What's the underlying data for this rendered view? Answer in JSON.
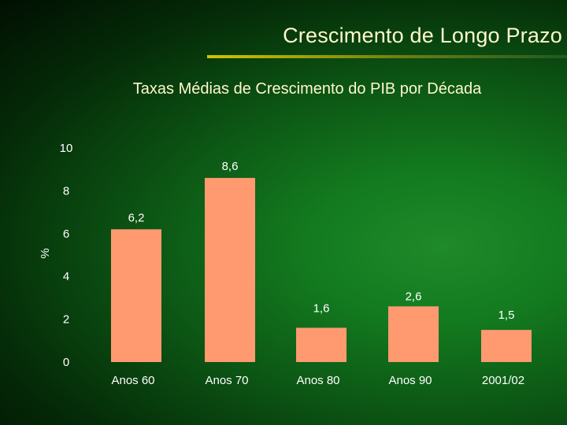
{
  "slide": {
    "title": "Crescimento de Longo Prazo"
  },
  "colors": {
    "bar": "#ff9a70",
    "title_text": "#fff8cc",
    "label_text": "#ffffff"
  },
  "chart_data": {
    "type": "bar",
    "title": "Taxas Médias de Crescimento do PIB por Década",
    "xlabel": "",
    "ylabel": "%",
    "ylim": [
      0,
      10
    ],
    "yticks": [
      0,
      2,
      4,
      6,
      8,
      10
    ],
    "grid": false,
    "legend": "none",
    "categories": [
      "Anos 60",
      "Anos 70",
      "Anos 80",
      "Anos 90",
      "2001/02"
    ],
    "values": [
      6.2,
      8.6,
      1.6,
      2.6,
      1.5
    ],
    "data_labels": [
      "6,2",
      "8,6",
      "1,6",
      "2,6",
      "1,5"
    ]
  }
}
